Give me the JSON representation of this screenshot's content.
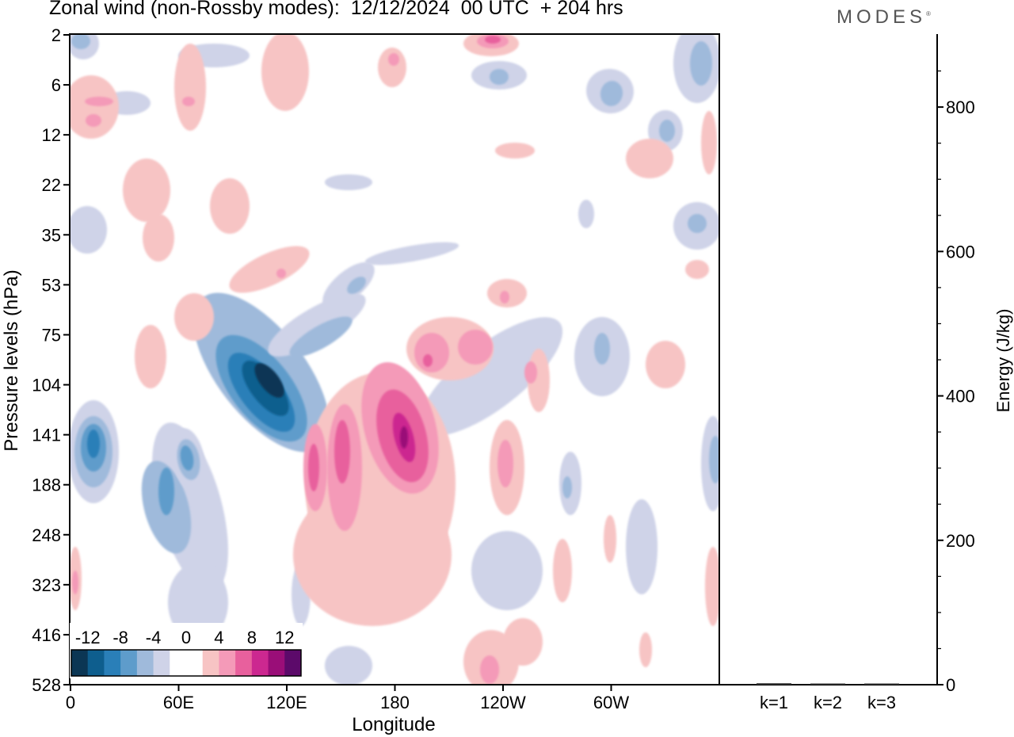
{
  "header": {
    "title": "Zonal wind (non-Rossby modes):  12/12/2024  00 UTC  + 204 hrs",
    "logo": "MODES"
  },
  "chart_data": [
    {
      "type": "heatmap",
      "title": "Zonal wind (non-Rossby modes):  12/12/2024  00 UTC  + 204 hrs",
      "xlabel": "Longitude",
      "ylabel": "Pressure levels (hPa)",
      "x_ticks": [
        "0",
        "60E",
        "120E",
        "180",
        "120W",
        "60W"
      ],
      "y_ticks": [
        "2",
        "6",
        "12",
        "22",
        "35",
        "53",
        "75",
        "104",
        "141",
        "188",
        "248",
        "323",
        "416",
        "528"
      ],
      "y_scale": "log, inverted",
      "colorbar": {
        "labels": [
          "-12",
          "-8",
          "-4",
          "0",
          "4",
          "8",
          "12"
        ],
        "colors": [
          "#0b3654",
          "#0e5e8e",
          "#2a7fb8",
          "#5e9ccb",
          "#9fbadb",
          "#cfd3e8",
          "#ffffff",
          "#ffffff",
          "#f7c4c4",
          "#f49ab8",
          "#e8609d",
          "#cc2890",
          "#9a0e78",
          "#5c0a6a"
        ]
      },
      "features": [
        {
          "sign": "negative",
          "lon": 95,
          "level": 104,
          "peak": -14
        },
        {
          "sign": "negative",
          "lon": 10,
          "level": 141,
          "peak": -9
        },
        {
          "sign": "negative",
          "lon": 50,
          "level": 160,
          "peak": -8
        },
        {
          "sign": "positive",
          "lon": 182,
          "level": 141,
          "peak": 12
        },
        {
          "sign": "positive",
          "lon": 130,
          "level": 150,
          "peak": 10
        },
        {
          "sign": "positive",
          "lon": 200,
          "level": 95,
          "peak": 7
        },
        {
          "sign": "positive",
          "lon": 230,
          "level": 2,
          "peak": 9
        }
      ]
    },
    {
      "type": "bar",
      "ylabel": "Energy (J/kg)",
      "categories": [
        "k=1",
        "k=2",
        "k=3"
      ],
      "values": [
        2,
        1.5,
        1
      ],
      "ylim": [
        0,
        900
      ],
      "y_ticks": [
        "0",
        "200",
        "400",
        "600",
        "800"
      ]
    }
  ]
}
